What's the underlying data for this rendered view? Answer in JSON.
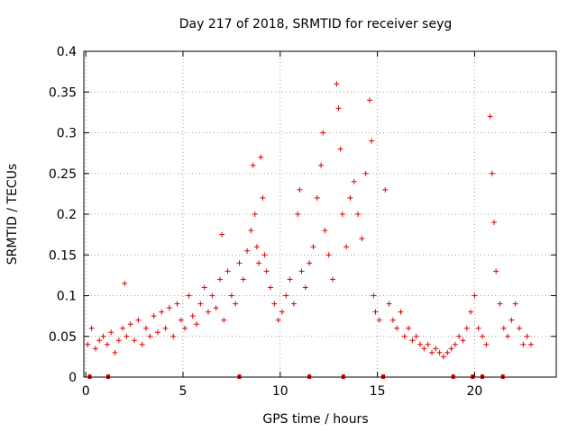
{
  "chart_data": {
    "type": "scatter",
    "title": "Day 217 of 2018, SRMTID for receiver seyg",
    "xlabel": "GPS time / hours",
    "ylabel": "SRMTID / TECUs",
    "xlim": [
      -0.1,
      24.2
    ],
    "ylim": [
      0,
      0.4
    ],
    "xticks": [
      0,
      5,
      10,
      15,
      20
    ],
    "xtick_labels": [
      "0",
      "5",
      "10",
      "15",
      "20"
    ],
    "yticks": [
      0,
      0.05,
      0.1,
      0.15,
      0.2,
      0.25,
      0.3,
      0.35,
      0.4
    ],
    "ytick_labels": [
      "0",
      "0.05",
      "0.1",
      "0.15",
      "0.2",
      "0.25",
      "0.3",
      "0.35",
      "0.4"
    ],
    "grid": true,
    "marker": "+",
    "color": "#e00000",
    "series": [
      {
        "name": "SRMTID",
        "points": [
          [
            0.1,
            0.04
          ],
          [
            0.3,
            0.06
          ],
          [
            0.5,
            0.035
          ],
          [
            0.7,
            0.045
          ],
          [
            0.9,
            0.05
          ],
          [
            1.1,
            0.04
          ],
          [
            1.3,
            0.055
          ],
          [
            1.5,
            0.03
          ],
          [
            1.7,
            0.045
          ],
          [
            1.9,
            0.06
          ],
          [
            2.0,
            0.115
          ],
          [
            2.1,
            0.05
          ],
          [
            2.3,
            0.065
          ],
          [
            2.5,
            0.045
          ],
          [
            2.7,
            0.07
          ],
          [
            2.9,
            0.04
          ],
          [
            3.1,
            0.06
          ],
          [
            3.3,
            0.05
          ],
          [
            3.5,
            0.075
          ],
          [
            3.7,
            0.055
          ],
          [
            3.9,
            0.08
          ],
          [
            4.1,
            0.06
          ],
          [
            4.3,
            0.085
          ],
          [
            4.5,
            0.05
          ],
          [
            4.7,
            0.09
          ],
          [
            4.9,
            0.07
          ],
          [
            5.1,
            0.06
          ],
          [
            5.3,
            0.1
          ],
          [
            5.5,
            0.075
          ],
          [
            5.7,
            0.065
          ],
          [
            5.9,
            0.09
          ],
          [
            6.1,
            0.11
          ],
          [
            6.3,
            0.08
          ],
          [
            6.5,
            0.1
          ],
          [
            6.7,
            0.085
          ],
          [
            6.9,
            0.12
          ],
          [
            7.0,
            0.175
          ],
          [
            7.1,
            0.07
          ],
          [
            7.3,
            0.13
          ],
          [
            7.5,
            0.1
          ],
          [
            7.7,
            0.09
          ],
          [
            7.9,
            0.14
          ],
          [
            8.1,
            0.12
          ],
          [
            8.3,
            0.155
          ],
          [
            8.5,
            0.18
          ],
          [
            8.6,
            0.26
          ],
          [
            8.7,
            0.2
          ],
          [
            8.8,
            0.16
          ],
          [
            8.9,
            0.14
          ],
          [
            9.0,
            0.27
          ],
          [
            9.1,
            0.22
          ],
          [
            9.2,
            0.15
          ],
          [
            9.3,
            0.13
          ],
          [
            9.5,
            0.11
          ],
          [
            9.7,
            0.09
          ],
          [
            9.9,
            0.07
          ],
          [
            10.1,
            0.08
          ],
          [
            10.3,
            0.1
          ],
          [
            10.5,
            0.12
          ],
          [
            10.7,
            0.09
          ],
          [
            10.9,
            0.2
          ],
          [
            11.0,
            0.23
          ],
          [
            11.1,
            0.13
          ],
          [
            11.3,
            0.11
          ],
          [
            11.5,
            0.14
          ],
          [
            11.7,
            0.16
          ],
          [
            11.9,
            0.22
          ],
          [
            12.1,
            0.26
          ],
          [
            12.2,
            0.3
          ],
          [
            12.3,
            0.18
          ],
          [
            12.5,
            0.15
          ],
          [
            12.7,
            0.12
          ],
          [
            12.9,
            0.36
          ],
          [
            13.0,
            0.33
          ],
          [
            13.1,
            0.28
          ],
          [
            13.2,
            0.2
          ],
          [
            13.4,
            0.16
          ],
          [
            13.6,
            0.22
          ],
          [
            13.8,
            0.24
          ],
          [
            14.0,
            0.2
          ],
          [
            14.2,
            0.17
          ],
          [
            14.4,
            0.25
          ],
          [
            14.6,
            0.34
          ],
          [
            14.7,
            0.29
          ],
          [
            14.8,
            0.1
          ],
          [
            14.9,
            0.08
          ],
          [
            15.1,
            0.07
          ],
          [
            15.4,
            0.23
          ],
          [
            15.6,
            0.09
          ],
          [
            15.8,
            0.07
          ],
          [
            16.0,
            0.06
          ],
          [
            16.2,
            0.08
          ],
          [
            16.4,
            0.05
          ],
          [
            16.6,
            0.06
          ],
          [
            16.8,
            0.045
          ],
          [
            17.0,
            0.05
          ],
          [
            17.2,
            0.04
          ],
          [
            17.4,
            0.035
          ],
          [
            17.6,
            0.04
          ],
          [
            17.8,
            0.03
          ],
          [
            18.0,
            0.035
          ],
          [
            18.2,
            0.03
          ],
          [
            18.4,
            0.025
          ],
          [
            18.6,
            0.03
          ],
          [
            18.8,
            0.035
          ],
          [
            19.0,
            0.04
          ],
          [
            19.2,
            0.05
          ],
          [
            19.4,
            0.045
          ],
          [
            19.6,
            0.06
          ],
          [
            19.8,
            0.08
          ],
          [
            20.0,
            0.1
          ],
          [
            20.2,
            0.06
          ],
          [
            20.4,
            0.05
          ],
          [
            20.6,
            0.04
          ],
          [
            20.8,
            0.32
          ],
          [
            20.9,
            0.25
          ],
          [
            21.0,
            0.19
          ],
          [
            21.1,
            0.13
          ],
          [
            21.3,
            0.09
          ],
          [
            21.5,
            0.06
          ],
          [
            21.7,
            0.05
          ],
          [
            21.9,
            0.07
          ],
          [
            22.1,
            0.09
          ],
          [
            22.3,
            0.06
          ],
          [
            22.5,
            0.04
          ],
          [
            22.7,
            0.05
          ],
          [
            22.9,
            0.04
          ]
        ]
      }
    ],
    "data_gaps_on_axis": [
      0.2,
      1.15,
      7.9,
      11.5,
      13.25,
      15.3,
      18.9,
      19.9,
      20.4,
      21.45
    ]
  }
}
